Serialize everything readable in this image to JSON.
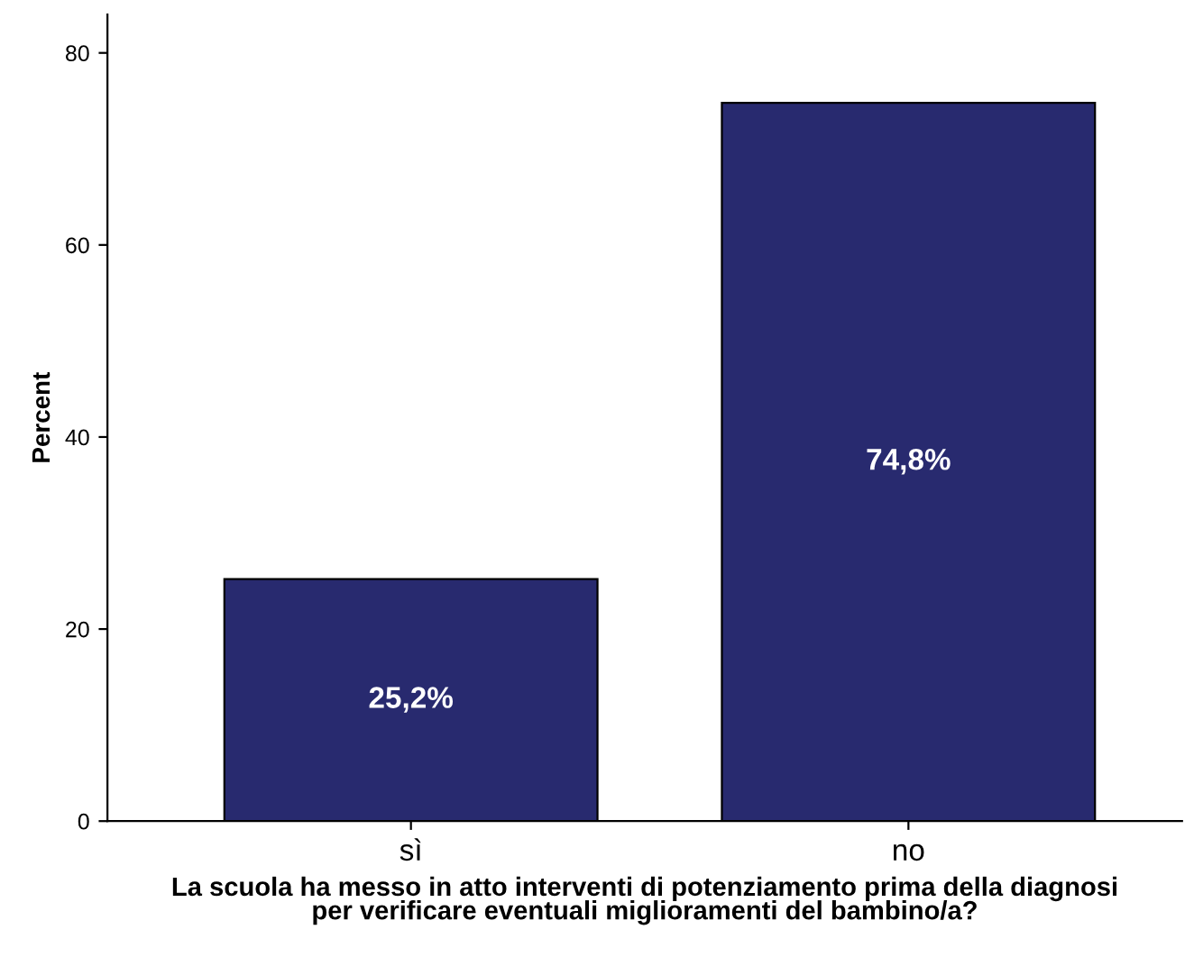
{
  "chart_data": {
    "type": "bar",
    "xlabel": "La scuola ha messo in atto interventi di potenziamento prima della diagnosi\nper verificare eventuali miglioramenti del bambino/a?",
    "ylabel": "Percent",
    "categories": [
      "sì",
      "no"
    ],
    "series": [
      {
        "color": "#282a6f",
        "values": [
          25.2,
          74.8
        ],
        "value_labels": [
          "25,2%",
          "74,8%"
        ]
      }
    ],
    "ylim": [
      0,
      84
    ],
    "yticks": [
      0,
      20,
      40,
      60,
      80
    ],
    "grid": false,
    "legend": false
  }
}
